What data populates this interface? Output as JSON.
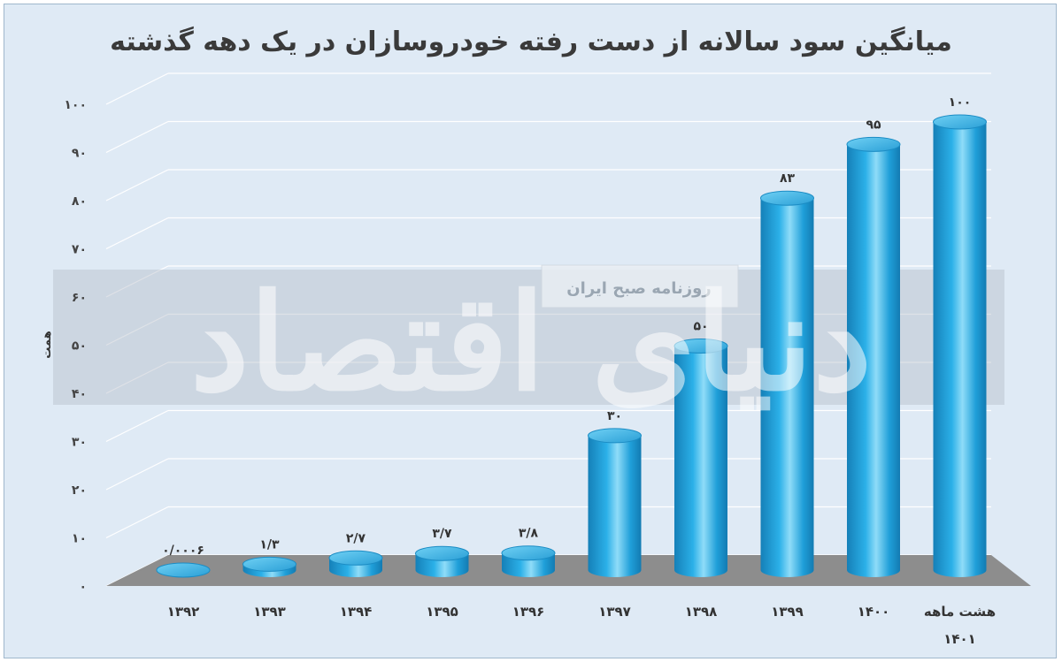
{
  "chart_data": {
    "type": "bar",
    "title": "میانگین سود سالانه از دست رفته خودروسازان در یک دهه گذشته",
    "ylabel": "همت",
    "xlabel": "",
    "ylim": [
      0,
      100
    ],
    "yticks": [
      "۰",
      "۱۰",
      "۲۰",
      "۳۰",
      "۴۰",
      "۵۰",
      "۶۰",
      "۷۰",
      "۸۰",
      "۹۰",
      "۱۰۰"
    ],
    "grid": true,
    "categories": [
      "۱۳۹۲",
      "۱۳۹۳",
      "۱۳۹۴",
      "۱۳۹۵",
      "۱۳۹۶",
      "۱۳۹۷",
      "۱۳۹۸",
      "۱۳۹۹",
      "۱۴۰۰",
      "هشت ماهه ۱۴۰۱"
    ],
    "values": [
      0.0006,
      1.3,
      2.7,
      3.7,
      3.8,
      30,
      50,
      83,
      95,
      100
    ],
    "value_labels": [
      "۰/۰۰۰۶",
      "۱/۳",
      "۲/۷",
      "۳/۷",
      "۳/۸",
      "۳۰",
      "۵۰",
      "۸۳",
      "۹۵",
      "۱۰۰"
    ],
    "colors": {
      "bar": "#1a9ad6",
      "bar_light": "#7fd3f5",
      "bar_top": "#4cc0ee",
      "floor": "#8a8a8a",
      "band": "#b9c3cc"
    }
  },
  "watermark": {
    "logo_text": "دنیای اقتصاد",
    "band_text": "روزنامه صبح ایران"
  }
}
